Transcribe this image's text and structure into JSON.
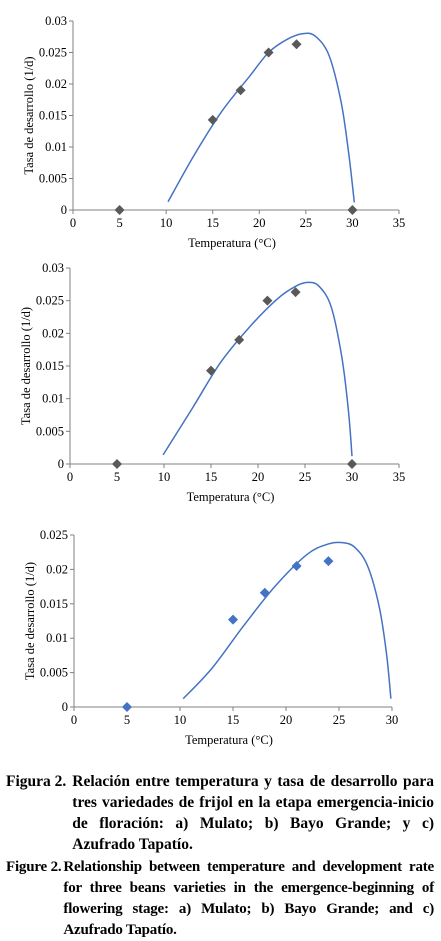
{
  "chart_data": [
    {
      "type": "scatter",
      "panel": "a",
      "xlabel": "Temperatura (°C)",
      "ylabel": "Tasa de desarrollo (1/d)",
      "xlim": [
        0,
        35
      ],
      "ylim": [
        0,
        0.03
      ],
      "x_ticks": [
        "0",
        "5",
        "10",
        "15",
        "20",
        "25",
        "30",
        "35"
      ],
      "y_ticks": [
        "0",
        "0.005",
        "0.01",
        "0.015",
        "0.02",
        "0.025",
        "0.03"
      ],
      "marker": "diamond",
      "marker_color": "#595959",
      "curve_color": "#4472c4",
      "points": [
        {
          "x": 5,
          "y": 0
        },
        {
          "x": 15,
          "y": 0.0143
        },
        {
          "x": 18,
          "y": 0.019
        },
        {
          "x": 21,
          "y": 0.025
        },
        {
          "x": 24,
          "y": 0.0263
        },
        {
          "x": 30,
          "y": 0
        }
      ],
      "fitted_curve": [
        {
          "x": 10.2,
          "y": 0.0013
        },
        {
          "x": 13,
          "y": 0.0087
        },
        {
          "x": 16,
          "y": 0.0157
        },
        {
          "x": 19,
          "y": 0.0213
        },
        {
          "x": 21,
          "y": 0.025
        },
        {
          "x": 23,
          "y": 0.0271
        },
        {
          "x": 24.7,
          "y": 0.028
        },
        {
          "x": 26,
          "y": 0.0276
        },
        {
          "x": 27.5,
          "y": 0.0245
        },
        {
          "x": 28.8,
          "y": 0.017
        },
        {
          "x": 29.6,
          "y": 0.009
        },
        {
          "x": 30.2,
          "y": 0.0012
        }
      ]
    },
    {
      "type": "scatter",
      "panel": "b",
      "xlabel": "Temperatura (°C)",
      "ylabel": "Tasa de desarrollo (1/d)",
      "xlim": [
        0,
        35
      ],
      "ylim": [
        0,
        0.03
      ],
      "x_ticks": [
        "0",
        "5",
        "10",
        "15",
        "20",
        "25",
        "30",
        "35"
      ],
      "y_ticks": [
        "0",
        "0.005",
        "0.01",
        "0.015",
        "0.02",
        "0.025",
        "0.03"
      ],
      "marker": "diamond",
      "marker_color": "#595959",
      "curve_color": "#4472c4",
      "points": [
        {
          "x": 5,
          "y": 0
        },
        {
          "x": 15,
          "y": 0.0143
        },
        {
          "x": 18,
          "y": 0.019
        },
        {
          "x": 21,
          "y": 0.025
        },
        {
          "x": 24,
          "y": 0.0263
        },
        {
          "x": 30,
          "y": 0
        }
      ],
      "fitted_curve": [
        {
          "x": 9.9,
          "y": 0.0014
        },
        {
          "x": 13,
          "y": 0.0085
        },
        {
          "x": 16,
          "y": 0.0155
        },
        {
          "x": 19,
          "y": 0.0208
        },
        {
          "x": 22,
          "y": 0.0252
        },
        {
          "x": 24,
          "y": 0.0272
        },
        {
          "x": 25.3,
          "y": 0.0278
        },
        {
          "x": 26.5,
          "y": 0.0272
        },
        {
          "x": 27.8,
          "y": 0.024
        },
        {
          "x": 28.9,
          "y": 0.0165
        },
        {
          "x": 29.6,
          "y": 0.0085
        },
        {
          "x": 30,
          "y": 0.0012
        }
      ]
    },
    {
      "type": "scatter",
      "panel": "c",
      "xlabel": "Temperatura (°C)",
      "ylabel": "Tasa de desarrollo (1/d)",
      "xlim": [
        0,
        30
      ],
      "ylim": [
        0,
        0.025
      ],
      "x_ticks": [
        "0",
        "5",
        "10",
        "15",
        "20",
        "25",
        "30"
      ],
      "y_ticks": [
        "0",
        "0.005",
        "0.01",
        "0.015",
        "0.02",
        "0.025"
      ],
      "marker": "diamond",
      "marker_color": "#4472c4",
      "curve_color": "#4472c4",
      "points": [
        {
          "x": 5,
          "y": 0
        },
        {
          "x": 15,
          "y": 0.0127
        },
        {
          "x": 18,
          "y": 0.0166
        },
        {
          "x": 21,
          "y": 0.0205
        },
        {
          "x": 24,
          "y": 0.0212
        }
      ],
      "fitted_curve": [
        {
          "x": 10.3,
          "y": 0.0012
        },
        {
          "x": 13,
          "y": 0.0056
        },
        {
          "x": 16,
          "y": 0.0118
        },
        {
          "x": 19,
          "y": 0.0176
        },
        {
          "x": 22,
          "y": 0.0222
        },
        {
          "x": 24,
          "y": 0.0237
        },
        {
          "x": 25.3,
          "y": 0.0239
        },
        {
          "x": 26.5,
          "y": 0.0232
        },
        {
          "x": 27.7,
          "y": 0.0205
        },
        {
          "x": 28.8,
          "y": 0.0145
        },
        {
          "x": 29.5,
          "y": 0.0075
        },
        {
          "x": 29.9,
          "y": 0.0012
        }
      ]
    }
  ],
  "captions": [
    {
      "label": "Figura 2.",
      "text": "Relación entre temperatura y tasa de desarrollo para tres variedades de frijol en la etapa emergencia-inicio de floración: a) Mulato; b) Bayo Grande; y c) Azufrado Tapatío."
    },
    {
      "label": "Figure 2.",
      "text": "Relationship between temperature and development rate for three beans varieties in the emergence-beginning of flowering stage: a) Mulato; b) Bayo Grande; and c) Azufrado Tapatío."
    }
  ]
}
